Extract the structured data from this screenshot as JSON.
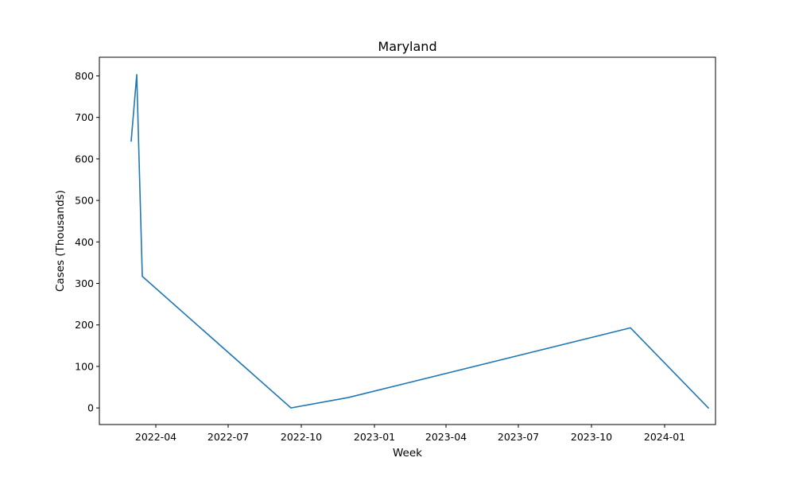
{
  "chart_data": {
    "type": "line",
    "title": "Maryland",
    "xlabel": "Week",
    "ylabel": "Cases (Thousands)",
    "line_color": "#1f77b4",
    "grid": false,
    "legend": "none",
    "x_axis_type": "date",
    "xlim": [
      "2022-01-20",
      "2024-03-05"
    ],
    "ylim": [
      -40,
      845
    ],
    "x_ticks": [
      {
        "date": "2022-04-01",
        "label": "2022-04"
      },
      {
        "date": "2022-07-01",
        "label": "2022-07"
      },
      {
        "date": "2022-10-01",
        "label": "2022-10"
      },
      {
        "date": "2023-01-01",
        "label": "2023-01"
      },
      {
        "date": "2023-04-01",
        "label": "2023-04"
      },
      {
        "date": "2023-07-01",
        "label": "2023-07"
      },
      {
        "date": "2023-10-01",
        "label": "2023-10"
      },
      {
        "date": "2024-01-01",
        "label": "2024-01"
      }
    ],
    "y_ticks": [
      {
        "value": 0,
        "label": "0"
      },
      {
        "value": 100,
        "label": "100"
      },
      {
        "value": 200,
        "label": "200"
      },
      {
        "value": 300,
        "label": "300"
      },
      {
        "value": 400,
        "label": "400"
      },
      {
        "value": 500,
        "label": "500"
      },
      {
        "value": 600,
        "label": "600"
      },
      {
        "value": 700,
        "label": "700"
      },
      {
        "value": 800,
        "label": "800"
      }
    ],
    "series": [
      {
        "points": [
          {
            "x": "2022-03-01",
            "y": 643
          },
          {
            "x": "2022-03-08",
            "y": 803
          },
          {
            "x": "2022-03-15",
            "y": 317
          },
          {
            "x": "2022-09-18",
            "y": 0
          },
          {
            "x": "2022-11-29",
            "y": 25
          },
          {
            "x": "2023-11-19",
            "y": 193
          },
          {
            "x": "2024-02-25",
            "y": 0
          }
        ]
      }
    ]
  }
}
